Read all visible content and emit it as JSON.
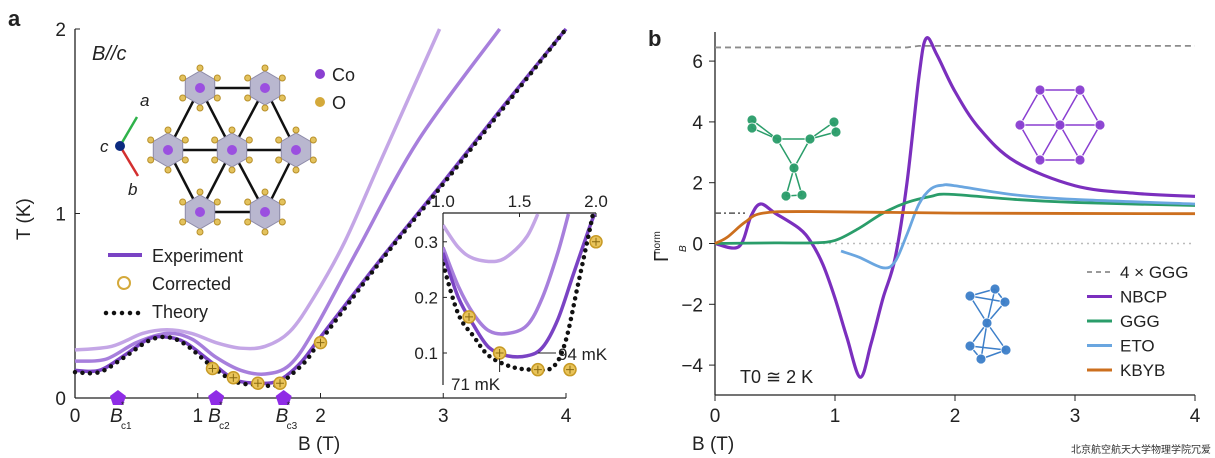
{
  "chart_data": [
    {
      "panel_label": "a",
      "type": "line",
      "xlabel": "B (T)",
      "ylabel": "T (K)",
      "xlim": [
        0,
        4.2
      ],
      "ylim": [
        0,
        2
      ],
      "xticks": [
        "0",
        "1",
        "2",
        "3",
        "4"
      ],
      "yticks": [
        "0",
        "1",
        "2"
      ],
      "annotation": "B//c",
      "structure_legend": [
        {
          "label": "Co",
          "color": "#8a3fd1"
        },
        {
          "label": "O",
          "color": "#d4a93a"
        }
      ],
      "axes_labels": {
        "a": "a",
        "b": "b",
        "c": "c"
      },
      "critical_fields": [
        {
          "label": "B",
          "sub": "c1",
          "x": 0.35
        },
        {
          "label": "B",
          "sub": "c2",
          "x": 1.15
        },
        {
          "label": "B",
          "sub": "c3",
          "x": 1.7
        }
      ],
      "legend": [
        "Experiment",
        "Corrected",
        "Theory"
      ],
      "series": [
        {
          "role": "experiment-light",
          "color": "#c4a6e6",
          "points": [
            [
              0,
              0.26
            ],
            [
              0.3,
              0.28
            ],
            [
              0.55,
              0.35
            ],
            [
              0.75,
              0.37
            ],
            [
              0.95,
              0.35
            ],
            [
              1.15,
              0.3
            ],
            [
              1.35,
              0.27
            ],
            [
              1.55,
              0.28
            ],
            [
              1.75,
              0.36
            ],
            [
              1.95,
              0.55
            ],
            [
              2.2,
              0.85
            ],
            [
              2.5,
              1.3
            ],
            [
              2.97,
              2.0
            ]
          ]
        },
        {
          "role": "experiment-mid",
          "color": "#a77fdc",
          "points": [
            [
              0,
              0.2
            ],
            [
              0.25,
              0.21
            ],
            [
              0.5,
              0.3
            ],
            [
              0.75,
              0.35
            ],
            [
              0.95,
              0.32
            ],
            [
              1.15,
              0.22
            ],
            [
              1.35,
              0.15
            ],
            [
              1.55,
              0.13
            ],
            [
              1.75,
              0.18
            ],
            [
              1.95,
              0.37
            ],
            [
              2.3,
              0.8
            ],
            [
              2.8,
              1.4
            ],
            [
              3.46,
              2.0
            ]
          ]
        },
        {
          "role": "experiment",
          "name": "Experiment",
          "color": "#7a43c4",
          "points": [
            [
              0,
              0.15
            ],
            [
              0.2,
              0.15
            ],
            [
              0.4,
              0.23
            ],
            [
              0.6,
              0.32
            ],
            [
              0.75,
              0.33
            ],
            [
              0.9,
              0.3
            ],
            [
              1.1,
              0.2
            ],
            [
              1.3,
              0.1
            ],
            [
              1.5,
              0.08
            ],
            [
              1.62,
              0.085
            ],
            [
              1.72,
              0.12
            ],
            [
              1.85,
              0.2
            ],
            [
              2.0,
              0.33
            ],
            [
              2.5,
              0.76
            ],
            [
              3.0,
              1.17
            ],
            [
              3.5,
              1.59
            ],
            [
              4.0,
              2.0
            ]
          ]
        },
        {
          "role": "theory",
          "name": "Theory",
          "color": "#111111",
          "dotted": true,
          "points": [
            [
              0,
              0.14
            ],
            [
              0.2,
              0.14
            ],
            [
              0.4,
              0.22
            ],
            [
              0.6,
              0.31
            ],
            [
              0.75,
              0.33
            ],
            [
              0.9,
              0.29
            ],
            [
              1.1,
              0.18
            ],
            [
              1.3,
              0.09
            ],
            [
              1.5,
              0.07
            ],
            [
              1.65,
              0.07
            ],
            [
              1.75,
              0.12
            ],
            [
              1.88,
              0.2
            ],
            [
              2.0,
              0.31
            ],
            [
              2.5,
              0.75
            ],
            [
              3.0,
              1.16
            ],
            [
              3.5,
              1.58
            ],
            [
              4.0,
              2.0
            ]
          ]
        }
      ],
      "corrected": {
        "name": "Corrected",
        "color": "#d4a93a",
        "points": [
          [
            1.12,
            0.16
          ],
          [
            1.29,
            0.11
          ],
          [
            1.49,
            0.08
          ],
          [
            1.67,
            0.08
          ],
          [
            2.0,
            0.3
          ]
        ]
      },
      "inset": {
        "xlim": [
          1.0,
          2.0
        ],
        "ylim": [
          0.04,
          0.35
        ],
        "xticks": [
          "1.0",
          "1.5",
          "2.0"
        ],
        "yticks": [
          "0.1",
          "0.2",
          "0.3"
        ],
        "annotations": [
          "94 mK",
          "71 mK"
        ],
        "series": [
          {
            "color": "#c4a6e6",
            "points": [
              [
                1.0,
                0.33
              ],
              [
                1.1,
                0.29
              ],
              [
                1.2,
                0.27
              ],
              [
                1.35,
                0.265
              ],
              [
                1.45,
                0.28
              ],
              [
                1.55,
                0.31
              ],
              [
                1.62,
                0.35
              ]
            ]
          },
          {
            "color": "#a77fdc",
            "points": [
              [
                1.0,
                0.29
              ],
              [
                1.1,
                0.22
              ],
              [
                1.2,
                0.17
              ],
              [
                1.3,
                0.14
              ],
              [
                1.42,
                0.135
              ],
              [
                1.55,
                0.15
              ],
              [
                1.65,
                0.2
              ],
              [
                1.75,
                0.28
              ],
              [
                1.82,
                0.35
              ]
            ]
          },
          {
            "color": "#7a43c4",
            "points": [
              [
                1.0,
                0.28
              ],
              [
                1.1,
                0.2
              ],
              [
                1.2,
                0.15
              ],
              [
                1.3,
                0.11
              ],
              [
                1.42,
                0.095
              ],
              [
                1.55,
                0.095
              ],
              [
                1.65,
                0.11
              ],
              [
                1.75,
                0.16
              ],
              [
                1.85,
                0.24
              ],
              [
                1.95,
                0.32
              ],
              [
                1.99,
                0.35
              ]
            ]
          },
          {
            "color": "#111111",
            "dotted": true,
            "points": [
              [
                1.0,
                0.26
              ],
              [
                1.1,
                0.17
              ],
              [
                1.2,
                0.13
              ],
              [
                1.3,
                0.095
              ],
              [
                1.45,
                0.075
              ],
              [
                1.6,
                0.07
              ],
              [
                1.72,
                0.075
              ],
              [
                1.8,
                0.12
              ],
              [
                1.88,
                0.22
              ],
              [
                1.95,
                0.31
              ],
              [
                1.98,
                0.35
              ]
            ]
          }
        ],
        "corrected": [
          [
            1.17,
            0.165
          ],
          [
            1.37,
            0.1
          ],
          [
            1.62,
            0.07
          ],
          [
            1.83,
            0.07
          ],
          [
            2.0,
            0.3
          ]
        ]
      }
    },
    {
      "panel_label": "b",
      "type": "line",
      "xlabel": "B (T)",
      "ylabel": "Γ_B^norm",
      "xlim": [
        0,
        4
      ],
      "ylim": [
        -5,
        7
      ],
      "xticks": [
        "0",
        "1",
        "2",
        "3",
        "4"
      ],
      "yticks": [
        "−4",
        "−2",
        "0",
        "2",
        "4",
        "6"
      ],
      "annotation": "T0 ≅ 2 K",
      "legend_position": "bottom-right",
      "legend": [
        "4 × GGG",
        "NBCP",
        "GGG",
        "ETO",
        "KBYB"
      ],
      "series": [
        {
          "name": "4 × GGG",
          "color": "#8c8c8c",
          "dashed": true,
          "points": [
            [
              0,
              6.45
            ],
            [
              1.6,
              6.45
            ],
            [
              1.7,
              6.5
            ],
            [
              4,
              6.5
            ]
          ]
        },
        {
          "name": "NBCP",
          "color": "#7b2fbe",
          "points": [
            [
              0,
              0
            ],
            [
              0.2,
              -0.1
            ],
            [
              0.3,
              0.9
            ],
            [
              0.38,
              1.3
            ],
            [
              0.5,
              1.0
            ],
            [
              0.7,
              0.5
            ],
            [
              0.8,
              0.05
            ],
            [
              0.9,
              -0.7
            ],
            [
              1.0,
              -1.8
            ],
            [
              1.1,
              -3.1
            ],
            [
              1.21,
              -4.4
            ],
            [
              1.3,
              -3.3
            ],
            [
              1.4,
              -1.8
            ],
            [
              1.5,
              -0.5
            ],
            [
              1.6,
              2.0
            ],
            [
              1.7,
              5.5
            ],
            [
              1.76,
              6.75
            ],
            [
              1.85,
              6.2
            ],
            [
              2.0,
              5.0
            ],
            [
              2.2,
              3.8
            ],
            [
              2.5,
              2.7
            ],
            [
              3.0,
              1.9
            ],
            [
              3.5,
              1.65
            ],
            [
              4.0,
              1.55
            ]
          ]
        },
        {
          "name": "GGG",
          "color": "#2a9d6a",
          "points": [
            [
              0,
              0
            ],
            [
              0.5,
              0.02
            ],
            [
              0.8,
              0.02
            ],
            [
              1.0,
              0.1
            ],
            [
              1.2,
              0.5
            ],
            [
              1.4,
              1.0
            ],
            [
              1.6,
              1.35
            ],
            [
              1.8,
              1.55
            ],
            [
              1.95,
              1.62
            ],
            [
              2.5,
              1.45
            ],
            [
              3.0,
              1.35
            ],
            [
              4.0,
              1.25
            ]
          ]
        },
        {
          "name": "ETO",
          "color": "#6aa6e0",
          "points": [
            [
              1.05,
              -0.25
            ],
            [
              1.2,
              -0.45
            ],
            [
              1.4,
              -0.8
            ],
            [
              1.5,
              -0.6
            ],
            [
              1.6,
              0.3
            ],
            [
              1.7,
              1.3
            ],
            [
              1.8,
              1.8
            ],
            [
              1.9,
              1.92
            ],
            [
              2.0,
              1.9
            ],
            [
              2.5,
              1.6
            ],
            [
              3.0,
              1.45
            ],
            [
              4.0,
              1.3
            ]
          ]
        },
        {
          "name": "KBYB",
          "color": "#cc6f1e",
          "points": [
            [
              0,
              0
            ],
            [
              0.1,
              0.2
            ],
            [
              0.25,
              0.7
            ],
            [
              0.4,
              1.0
            ],
            [
              0.8,
              1.05
            ],
            [
              2.0,
              1.0
            ],
            [
              4.0,
              0.98
            ]
          ]
        }
      ],
      "reference_lines": [
        {
          "style": "dash-dot",
          "y": 1,
          "x": [
            0,
            0.25
          ],
          "color": "#555555"
        },
        {
          "style": "dotted",
          "y": 0,
          "x": [
            0.8,
            4
          ],
          "color": "#bbbbbb"
        }
      ],
      "structures": [
        {
          "color": "#2a9d6a"
        },
        {
          "color": "#8a3fd1"
        },
        {
          "color": "#3d7fc9"
        }
      ]
    }
  ],
  "watermark": "北京航空航天大学物理学院冗爱"
}
